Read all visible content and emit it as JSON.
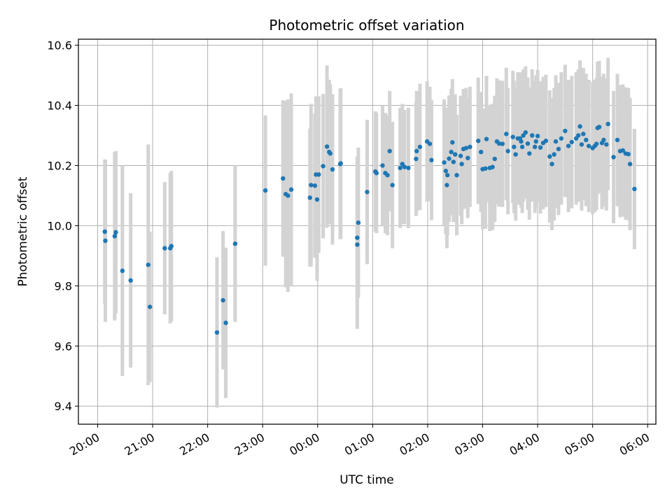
{
  "chart_data": {
    "type": "scatter",
    "title": "Photometric offset variation",
    "xlabel": "UTC time",
    "ylabel": "Photometric offset",
    "x_unit": "hours after 20:00 UTC",
    "xlim": [
      -0.35,
      10.15
    ],
    "ylim": [
      9.34,
      10.62
    ],
    "x_ticks": [
      {
        "x": 0,
        "label": "20:00"
      },
      {
        "x": 1,
        "label": "21:00"
      },
      {
        "x": 2,
        "label": "22:00"
      },
      {
        "x": 3,
        "label": "23:00"
      },
      {
        "x": 4,
        "label": "00:00"
      },
      {
        "x": 5,
        "label": "01:00"
      },
      {
        "x": 6,
        "label": "02:00"
      },
      {
        "x": 7,
        "label": "03:00"
      },
      {
        "x": 8,
        "label": "04:00"
      },
      {
        "x": 9,
        "label": "05:00"
      },
      {
        "x": 10,
        "label": "06:00"
      }
    ],
    "y_ticks": [
      9.4,
      9.6,
      9.8,
      10.0,
      10.2,
      10.4,
      10.6
    ],
    "grid": true,
    "marker_color": "#1f77b4",
    "errorbar_color": "#d3d3d3",
    "points": [
      {
        "x": 0.13,
        "y": 9.98,
        "err": 0.24
      },
      {
        "x": 0.14,
        "y": 9.95,
        "err": 0.27
      },
      {
        "x": 0.31,
        "y": 9.965,
        "err": 0.28
      },
      {
        "x": 0.33,
        "y": 9.978,
        "err": 0.27
      },
      {
        "x": 0.45,
        "y": 9.85,
        "err": 0.35
      },
      {
        "x": 0.6,
        "y": 9.818,
        "err": 0.29
      },
      {
        "x": 0.92,
        "y": 9.87,
        "err": 0.4
      },
      {
        "x": 0.95,
        "y": 9.73,
        "err": 0.25
      },
      {
        "x": 1.22,
        "y": 9.925,
        "err": 0.22
      },
      {
        "x": 1.32,
        "y": 9.925,
        "err": 0.25
      },
      {
        "x": 1.34,
        "y": 9.932,
        "err": 0.25
      },
      {
        "x": 2.17,
        "y": 9.645,
        "err": 0.25
      },
      {
        "x": 2.28,
        "y": 9.752,
        "err": 0.23
      },
      {
        "x": 2.33,
        "y": 9.677,
        "err": 0.25
      },
      {
        "x": 2.5,
        "y": 9.94,
        "err": 0.26
      },
      {
        "x": 3.05,
        "y": 10.117,
        "err": 0.25
      },
      {
        "x": 3.37,
        "y": 10.157,
        "err": 0.26
      },
      {
        "x": 3.42,
        "y": 10.105,
        "err": 0.31
      },
      {
        "x": 3.46,
        "y": 10.1,
        "err": 0.32
      },
      {
        "x": 3.52,
        "y": 10.12,
        "err": 0.32
      },
      {
        "x": 3.86,
        "y": 10.093,
        "err": 0.23
      },
      {
        "x": 3.88,
        "y": 10.135,
        "err": 0.27
      },
      {
        "x": 3.95,
        "y": 10.133,
        "err": 0.24
      },
      {
        "x": 3.97,
        "y": 10.17,
        "err": 0.26
      },
      {
        "x": 3.99,
        "y": 10.087,
        "err": 0.27
      },
      {
        "x": 4.02,
        "y": 10.17,
        "err": 0.26
      },
      {
        "x": 4.1,
        "y": 10.198,
        "err": 0.24
      },
      {
        "x": 4.17,
        "y": 10.263,
        "err": 0.27
      },
      {
        "x": 4.21,
        "y": 10.245,
        "err": 0.24
      },
      {
        "x": 4.23,
        "y": 10.24,
        "err": 0.23
      },
      {
        "x": 4.27,
        "y": 10.187,
        "err": 0.25
      },
      {
        "x": 4.41,
        "y": 10.205,
        "err": 0.25
      },
      {
        "x": 4.42,
        "y": 10.207,
        "err": 0.25
      },
      {
        "x": 4.72,
        "y": 9.96,
        "err": 0.27
      },
      {
        "x": 4.72,
        "y": 9.937,
        "err": 0.28
      },
      {
        "x": 4.74,
        "y": 10.01,
        "err": 0.25
      },
      {
        "x": 4.9,
        "y": 10.112,
        "err": 0.24
      },
      {
        "x": 5.05,
        "y": 10.18,
        "err": 0.2
      },
      {
        "x": 5.07,
        "y": 10.175,
        "err": 0.2
      },
      {
        "x": 5.18,
        "y": 10.2,
        "err": 0.2
      },
      {
        "x": 5.23,
        "y": 10.175,
        "err": 0.2
      },
      {
        "x": 5.27,
        "y": 10.168,
        "err": 0.2
      },
      {
        "x": 5.31,
        "y": 10.248,
        "err": 0.2
      },
      {
        "x": 5.36,
        "y": 10.135,
        "err": 0.21
      },
      {
        "x": 5.5,
        "y": 10.192,
        "err": 0.2
      },
      {
        "x": 5.54,
        "y": 10.205,
        "err": 0.2
      },
      {
        "x": 5.58,
        "y": 10.195,
        "err": 0.19
      },
      {
        "x": 5.65,
        "y": 10.192,
        "err": 0.2
      },
      {
        "x": 5.79,
        "y": 10.222,
        "err": 0.19
      },
      {
        "x": 5.8,
        "y": 10.248,
        "err": 0.2
      },
      {
        "x": 5.86,
        "y": 10.262,
        "err": 0.21
      },
      {
        "x": 5.99,
        "y": 10.28,
        "err": 0.2
      },
      {
        "x": 6.04,
        "y": 10.272,
        "err": 0.19
      },
      {
        "x": 6.07,
        "y": 10.218,
        "err": 0.2
      },
      {
        "x": 6.3,
        "y": 10.21,
        "err": 0.21
      },
      {
        "x": 6.33,
        "y": 10.182,
        "err": 0.21
      },
      {
        "x": 6.35,
        "y": 10.135,
        "err": 0.21
      },
      {
        "x": 6.36,
        "y": 10.168,
        "err": 0.2
      },
      {
        "x": 6.39,
        "y": 10.223,
        "err": 0.21
      },
      {
        "x": 6.43,
        "y": 10.245,
        "err": 0.21
      },
      {
        "x": 6.45,
        "y": 10.277,
        "err": 0.21
      },
      {
        "x": 6.47,
        "y": 10.212,
        "err": 0.2
      },
      {
        "x": 6.5,
        "y": 10.237,
        "err": 0.2
      },
      {
        "x": 6.53,
        "y": 10.168,
        "err": 0.2
      },
      {
        "x": 6.6,
        "y": 10.232,
        "err": 0.2
      },
      {
        "x": 6.62,
        "y": 10.205,
        "err": 0.2
      },
      {
        "x": 6.65,
        "y": 10.255,
        "err": 0.2
      },
      {
        "x": 6.7,
        "y": 10.258,
        "err": 0.2
      },
      {
        "x": 6.73,
        "y": 10.225,
        "err": 0.2
      },
      {
        "x": 6.77,
        "y": 10.262,
        "err": 0.2
      },
      {
        "x": 6.92,
        "y": 10.282,
        "err": 0.21
      },
      {
        "x": 6.97,
        "y": 10.245,
        "err": 0.2
      },
      {
        "x": 7.0,
        "y": 10.188,
        "err": 0.2
      },
      {
        "x": 7.05,
        "y": 10.19,
        "err": 0.2
      },
      {
        "x": 7.07,
        "y": 10.288,
        "err": 0.21
      },
      {
        "x": 7.13,
        "y": 10.192,
        "err": 0.21
      },
      {
        "x": 7.18,
        "y": 10.195,
        "err": 0.21
      },
      {
        "x": 7.22,
        "y": 10.222,
        "err": 0.21
      },
      {
        "x": 7.26,
        "y": 10.28,
        "err": 0.21
      },
      {
        "x": 7.3,
        "y": 10.273,
        "err": 0.21
      },
      {
        "x": 7.36,
        "y": 10.272,
        "err": 0.21
      },
      {
        "x": 7.43,
        "y": 10.305,
        "err": 0.22
      },
      {
        "x": 7.46,
        "y": 10.248,
        "err": 0.21
      },
      {
        "x": 7.55,
        "y": 10.295,
        "err": 0.22
      },
      {
        "x": 7.57,
        "y": 10.262,
        "err": 0.22
      },
      {
        "x": 7.6,
        "y": 10.237,
        "err": 0.22
      },
      {
        "x": 7.64,
        "y": 10.29,
        "err": 0.22
      },
      {
        "x": 7.68,
        "y": 10.29,
        "err": 0.22
      },
      {
        "x": 7.7,
        "y": 10.28,
        "err": 0.22
      },
      {
        "x": 7.72,
        "y": 10.262,
        "err": 0.22
      },
      {
        "x": 7.74,
        "y": 10.3,
        "err": 0.22
      },
      {
        "x": 7.78,
        "y": 10.31,
        "err": 0.22
      },
      {
        "x": 7.82,
        "y": 10.273,
        "err": 0.22
      },
      {
        "x": 7.85,
        "y": 10.24,
        "err": 0.22
      },
      {
        "x": 7.9,
        "y": 10.3,
        "err": 0.22
      },
      {
        "x": 7.95,
        "y": 10.262,
        "err": 0.22
      },
      {
        "x": 7.97,
        "y": 10.28,
        "err": 0.22
      },
      {
        "x": 8.0,
        "y": 10.298,
        "err": 0.22
      },
      {
        "x": 8.05,
        "y": 10.26,
        "err": 0.22
      },
      {
        "x": 8.1,
        "y": 10.275,
        "err": 0.22
      },
      {
        "x": 8.15,
        "y": 10.282,
        "err": 0.22
      },
      {
        "x": 8.22,
        "y": 10.23,
        "err": 0.22
      },
      {
        "x": 8.26,
        "y": 10.205,
        "err": 0.22
      },
      {
        "x": 8.3,
        "y": 10.237,
        "err": 0.22
      },
      {
        "x": 8.33,
        "y": 10.28,
        "err": 0.22
      },
      {
        "x": 8.38,
        "y": 10.255,
        "err": 0.22
      },
      {
        "x": 8.43,
        "y": 10.29,
        "err": 0.22
      },
      {
        "x": 8.5,
        "y": 10.315,
        "err": 0.22
      },
      {
        "x": 8.56,
        "y": 10.265,
        "err": 0.22
      },
      {
        "x": 8.62,
        "y": 10.278,
        "err": 0.22
      },
      {
        "x": 8.7,
        "y": 10.29,
        "err": 0.22
      },
      {
        "x": 8.74,
        "y": 10.3,
        "err": 0.22
      },
      {
        "x": 8.77,
        "y": 10.33,
        "err": 0.22
      },
      {
        "x": 8.8,
        "y": 10.27,
        "err": 0.22
      },
      {
        "x": 8.83,
        "y": 10.305,
        "err": 0.22
      },
      {
        "x": 8.88,
        "y": 10.285,
        "err": 0.22
      },
      {
        "x": 8.93,
        "y": 10.265,
        "err": 0.22
      },
      {
        "x": 9.0,
        "y": 10.258,
        "err": 0.22
      },
      {
        "x": 9.04,
        "y": 10.265,
        "err": 0.22
      },
      {
        "x": 9.07,
        "y": 10.272,
        "err": 0.22
      },
      {
        "x": 9.09,
        "y": 10.325,
        "err": 0.22
      },
      {
        "x": 9.12,
        "y": 10.328,
        "err": 0.22
      },
      {
        "x": 9.17,
        "y": 10.275,
        "err": 0.22
      },
      {
        "x": 9.2,
        "y": 10.285,
        "err": 0.22
      },
      {
        "x": 9.25,
        "y": 10.27,
        "err": 0.22
      },
      {
        "x": 9.28,
        "y": 10.338,
        "err": 0.22
      },
      {
        "x": 9.38,
        "y": 10.228,
        "err": 0.22
      },
      {
        "x": 9.45,
        "y": 10.285,
        "err": 0.22
      },
      {
        "x": 9.5,
        "y": 10.248,
        "err": 0.22
      },
      {
        "x": 9.55,
        "y": 10.25,
        "err": 0.22
      },
      {
        "x": 9.6,
        "y": 10.24,
        "err": 0.22
      },
      {
        "x": 9.65,
        "y": 10.238,
        "err": 0.22
      },
      {
        "x": 9.68,
        "y": 10.205,
        "err": 0.22
      },
      {
        "x": 9.76,
        "y": 10.122,
        "err": 0.2
      }
    ]
  }
}
